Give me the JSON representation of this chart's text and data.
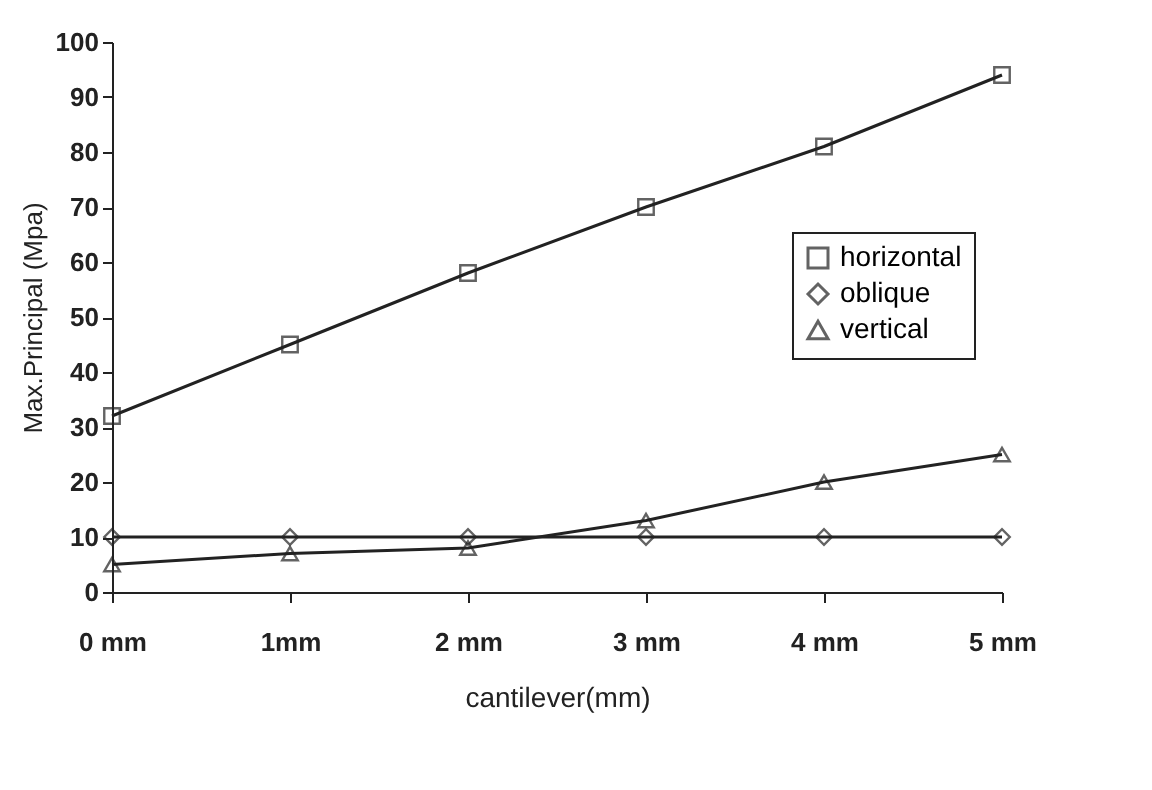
{
  "chart_data": {
    "type": "line",
    "xlabel": "cantilever(mm)",
    "ylabel": "Max.Principal (Mpa)",
    "categories": [
      "0 mm",
      "1mm",
      "2 mm",
      "3 mm",
      "4 mm",
      "5 mm"
    ],
    "ylim": [
      0,
      100
    ],
    "yticks": [
      0,
      10,
      20,
      30,
      40,
      50,
      60,
      70,
      80,
      90,
      100
    ],
    "grid": false,
    "legend": "top right",
    "series": [
      {
        "name": "horizontal",
        "color": "#222222",
        "marker": "square",
        "values": [
          32,
          45,
          58,
          70,
          81,
          94
        ]
      },
      {
        "name": "oblique",
        "color": "#222222",
        "marker": "diamond",
        "values": [
          10,
          10,
          10,
          10,
          10,
          10
        ]
      },
      {
        "name": "vertical",
        "color": "#222222",
        "marker": "triangle",
        "values": [
          5,
          7,
          8,
          13,
          20,
          25
        ]
      }
    ]
  }
}
